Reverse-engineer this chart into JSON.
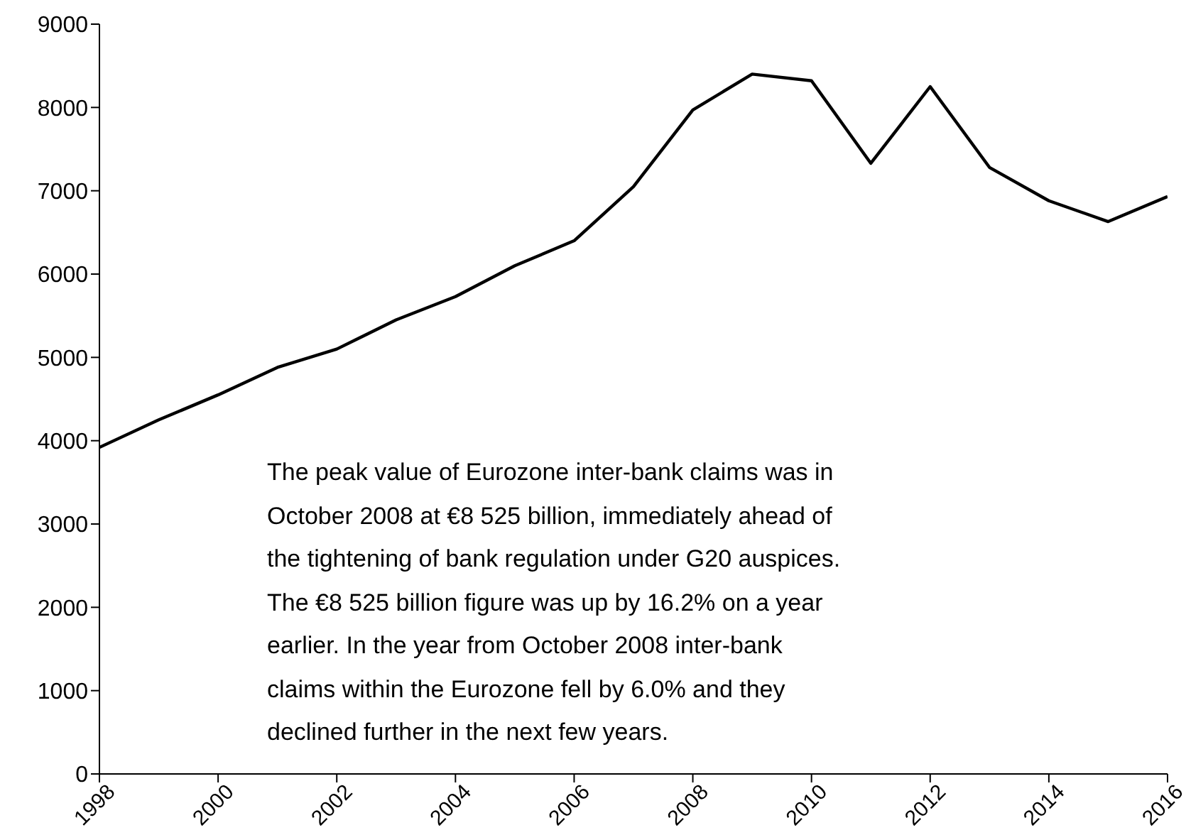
{
  "chart_data": {
    "type": "line",
    "x": [
      1998,
      1999,
      2000,
      2001,
      2002,
      2003,
      2004,
      2005,
      2006,
      2007,
      2008,
      2009,
      2010,
      2011,
      2012,
      2013,
      2014,
      2015,
      2016
    ],
    "series": [
      {
        "color": "#000000",
        "values": [
          3920,
          4250,
          4550,
          4880,
          5100,
          5450,
          5730,
          6100,
          6400,
          7050,
          7970,
          8400,
          8320,
          7330,
          8250,
          7280,
          6880,
          6630,
          6930
        ]
      }
    ],
    "xlim": [
      1998,
      2016
    ],
    "xticks": [
      1998,
      2000,
      2002,
      2004,
      2006,
      2008,
      2010,
      2012,
      2014,
      2016
    ],
    "ylim": [
      0,
      9000
    ],
    "yticks": [
      0,
      1000,
      2000,
      3000,
      4000,
      5000,
      6000,
      7000,
      8000,
      9000
    ],
    "grid": false,
    "legend": false,
    "marker": "none",
    "line_style": "solid",
    "annotations": [
      "The peak value of Eurozone inter-bank claims was in\nOctober 2008 at €8 525 billion, immediately ahead of\nthe tightening of bank regulation under G20 auspices.\nThe €8 525 billion figure was up by 16.2% on a year\nearlier. In the year from October 2008 inter-bank\nclaims within the Eurozone fell by 6.0% and they\ndeclined further in the next few years."
    ]
  }
}
